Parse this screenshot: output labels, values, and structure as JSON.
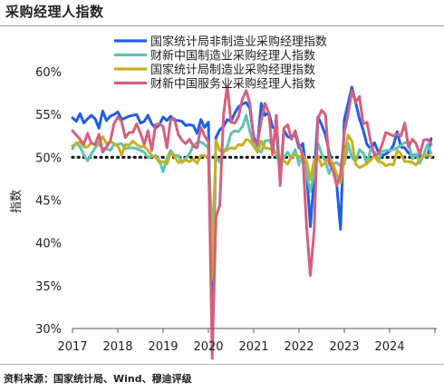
{
  "title": "采购经理人指数",
  "source": "资料来源：国家统计局、Wind、穆迪评级",
  "chart_data": {
    "type": "line",
    "ylabel": "指数",
    "ylim": [
      30,
      61
    ],
    "yticks": [
      "60%",
      "55%",
      "50%",
      "45%",
      "40%",
      "35%",
      "30%"
    ],
    "ytick_values": [
      60,
      55,
      50,
      45,
      40,
      35,
      30
    ],
    "xticks": [
      "2017",
      "2018",
      "2019",
      "2020",
      "2021",
      "2022",
      "2023",
      "2024"
    ],
    "xtick_values": [
      2017,
      2018,
      2019,
      2020,
      2021,
      2022,
      2023,
      2024
    ],
    "x_start": 2017.0,
    "x_step": 0.0833333,
    "reference_line": 50,
    "legend_position": "top-right",
    "series": [
      {
        "name": "国家统计局非制造业采购经理指数",
        "color": "#1f5ee6",
        "values": [
          54.6,
          54.2,
          55.1,
          54.0,
          54.5,
          54.9,
          54.5,
          53.4,
          55.4,
          54.3,
          54.8,
          55.0,
          55.3,
          54.4,
          54.6,
          54.8,
          54.9,
          55.0,
          54.0,
          54.2,
          54.9,
          53.9,
          53.4,
          53.8,
          54.7,
          54.3,
          54.8,
          54.3,
          54.3,
          54.2,
          53.7,
          53.8,
          53.7,
          52.8,
          54.4,
          53.5,
          54.1,
          29.6,
          52.3,
          53.2,
          53.6,
          54.4,
          54.2,
          55.2,
          55.9,
          56.2,
          56.4,
          55.7,
          52.4,
          51.4,
          56.3,
          54.9,
          55.2,
          53.5,
          53.3,
          47.5,
          53.2,
          52.4,
          52.3,
          52.7,
          51.1,
          51.6,
          48.4,
          41.9,
          47.8,
          54.7,
          53.8,
          52.6,
          50.6,
          48.7,
          46.7,
          41.6,
          54.4,
          56.3,
          58.2,
          56.4,
          54.5,
          53.2,
          51.5,
          51.0,
          51.7,
          50.6,
          50.2,
          50.4,
          50.7,
          51.4,
          53.0,
          51.2,
          51.1,
          50.5,
          50.2,
          50.3,
          50.0,
          50.2,
          50.0,
          52.2
        ]
      },
      {
        "name": "财新中国制造业采购经理人指数",
        "color": "#5fc4b4",
        "values": [
          51.0,
          51.7,
          51.2,
          50.3,
          49.6,
          50.4,
          51.1,
          51.6,
          51.0,
          51.0,
          50.8,
          51.5,
          51.5,
          51.6,
          51.0,
          51.1,
          51.1,
          51.0,
          50.8,
          50.6,
          50.0,
          50.1,
          50.2,
          49.7,
          48.3,
          49.9,
          50.8,
          50.2,
          50.2,
          49.4,
          49.9,
          50.4,
          51.4,
          51.7,
          51.8,
          51.5,
          51.1,
          40.3,
          50.1,
          49.4,
          50.7,
          51.2,
          52.8,
          53.1,
          53.0,
          53.6,
          54.9,
          53.0,
          51.5,
          50.9,
          50.6,
          51.9,
          52.0,
          51.3,
          50.3,
          49.2,
          50.0,
          50.6,
          49.9,
          50.9,
          49.1,
          50.4,
          48.1,
          46.0,
          48.1,
          51.7,
          50.4,
          49.5,
          48.1,
          49.2,
          49.4,
          49.0,
          49.2,
          51.6,
          50.0,
          49.5,
          50.9,
          50.5,
          49.2,
          51.0,
          50.6,
          49.5,
          50.7,
          50.8,
          50.8,
          50.9,
          51.1,
          51.4,
          51.7,
          51.8,
          49.8,
          50.4,
          49.3,
          50.3,
          51.5,
          50.5
        ]
      },
      {
        "name": "国家统计局制造业采购经理指数",
        "color": "#c8b021",
        "values": [
          51.3,
          51.6,
          51.8,
          51.2,
          51.2,
          51.7,
          51.4,
          51.7,
          52.4,
          51.6,
          51.8,
          51.6,
          51.3,
          50.3,
          51.5,
          51.4,
          51.9,
          51.5,
          51.2,
          51.3,
          50.8,
          50.2,
          50.0,
          49.4,
          49.5,
          49.2,
          50.5,
          50.1,
          49.4,
          49.4,
          49.7,
          49.5,
          49.8,
          49.3,
          50.2,
          50.2,
          50.0,
          35.7,
          52.0,
          50.8,
          50.6,
          50.9,
          51.1,
          51.0,
          51.5,
          51.4,
          52.1,
          51.9,
          51.3,
          50.6,
          51.9,
          51.1,
          51.0,
          50.9,
          50.4,
          50.1,
          49.6,
          49.2,
          50.1,
          50.3,
          50.1,
          50.2,
          49.5,
          47.4,
          49.6,
          50.2,
          49.0,
          49.4,
          50.1,
          49.2,
          48.0,
          47.0,
          50.1,
          52.6,
          51.9,
          49.2,
          48.8,
          49.0,
          49.3,
          49.7,
          50.2,
          49.5,
          49.4,
          49.0,
          49.2,
          49.1,
          50.8,
          50.4,
          49.5,
          49.5,
          49.4,
          49.1,
          49.8,
          50.1,
          50.3,
          50.1
        ]
      },
      {
        "name": "财新中国服务业采购经理人指数",
        "color": "#d4607e",
        "values": [
          53.1,
          52.6,
          52.1,
          51.5,
          52.8,
          51.6,
          51.5,
          52.7,
          50.6,
          51.2,
          51.9,
          53.9,
          54.7,
          54.2,
          52.3,
          52.9,
          52.9,
          53.9,
          52.8,
          51.5,
          53.1,
          50.8,
          53.8,
          53.9,
          53.6,
          51.1,
          54.4,
          54.5,
          52.7,
          52.0,
          51.6,
          52.1,
          51.3,
          51.1,
          53.5,
          52.5,
          51.8,
          26.5,
          43.0,
          44.4,
          55.0,
          58.4,
          54.1,
          54.0,
          54.8,
          56.8,
          57.8,
          56.3,
          52.0,
          51.5,
          54.3,
          56.3,
          55.1,
          50.3,
          54.9,
          46.7,
          53.4,
          53.8,
          52.1,
          53.1,
          51.4,
          50.2,
          42.0,
          36.2,
          41.4,
          54.5,
          55.5,
          55.0,
          49.3,
          48.4,
          46.7,
          48.0,
          52.9,
          55.0,
          57.8,
          56.4,
          57.1,
          53.9,
          54.1,
          51.8,
          50.2,
          50.4,
          51.5,
          52.9,
          52.7,
          52.5,
          52.7,
          52.5,
          54.0,
          51.2,
          52.1,
          51.6,
          50.3,
          52.0,
          52.1,
          51.5
        ]
      }
    ]
  }
}
